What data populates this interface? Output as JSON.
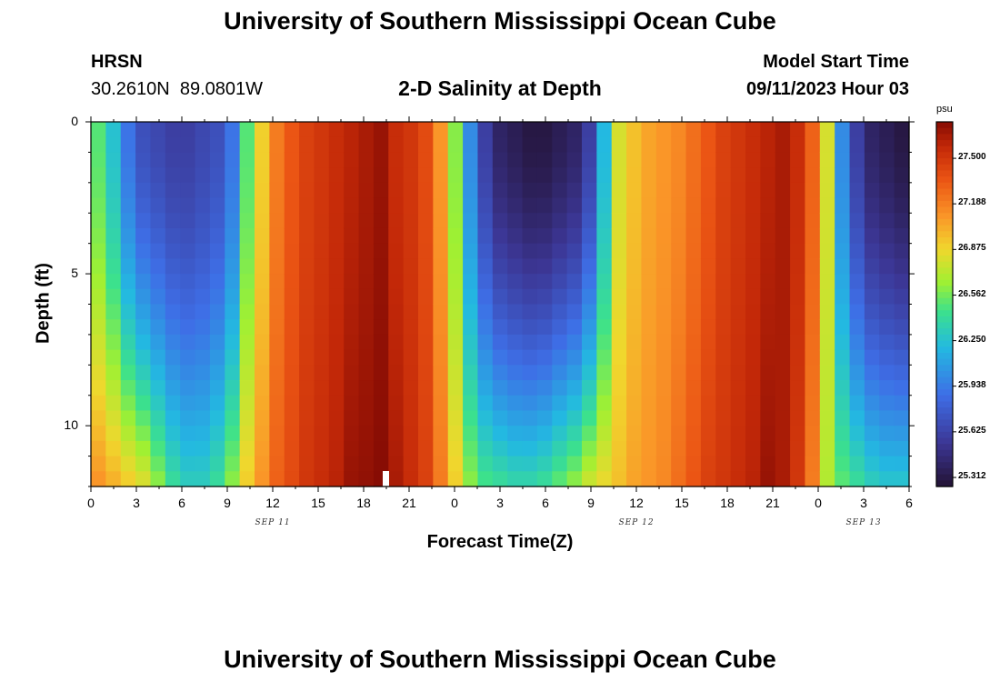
{
  "chart_data": {
    "type": "heatmap",
    "title": "University of Southern Mississippi Ocean Cube",
    "station": "HRSN",
    "location": "30.2610N  89.0801W",
    "subtitle": "2-D Salinity at Depth",
    "model_start_label": "Model Start Time",
    "model_start_value": "09/11/2023 Hour 03",
    "xlabel": "Forecast Time(Z)",
    "ylabel": "Depth (ft)",
    "x_ticks": [
      "0",
      "3",
      "6",
      "9",
      "12",
      "15",
      "18",
      "21",
      "0",
      "3",
      "6",
      "9",
      "12",
      "15",
      "18",
      "21",
      "0",
      "3",
      "6"
    ],
    "date_labels": [
      "SEP 11",
      "SEP 12",
      "SEP 13"
    ],
    "y_ticks": [
      "0",
      "5",
      "10"
    ],
    "y_range": [
      0,
      12
    ],
    "x_range_hours": [
      0,
      54
    ],
    "colorbar": {
      "unit": "psu",
      "ticks": [
        "27.500",
        "27.188",
        "26.875",
        "26.562",
        "26.250",
        "25.938",
        "25.625",
        "25.312"
      ],
      "range": [
        25.25,
        27.75
      ]
    },
    "surface_salinity_psu": [
      26.5,
      26.25,
      25.9,
      25.7,
      25.65,
      25.6,
      25.6,
      25.65,
      25.7,
      25.9,
      26.5,
      26.9,
      27.2,
      27.35,
      27.45,
      27.5,
      27.55,
      27.6,
      27.65,
      27.7,
      27.55,
      27.5,
      27.4,
      27.1,
      26.6,
      26.0,
      25.6,
      25.4,
      25.35,
      25.3,
      25.3,
      25.35,
      25.4,
      25.6,
      26.2,
      26.8,
      26.95,
      27.05,
      27.1,
      27.15,
      27.25,
      27.35,
      27.45,
      27.5,
      27.55,
      27.6,
      27.65,
      27.55,
      27.3,
      26.8,
      26.0,
      25.6,
      25.4,
      25.35,
      25.3
    ],
    "bottom_salinity_psu": [
      27.1,
      27.0,
      26.9,
      26.8,
      26.6,
      26.4,
      26.3,
      26.3,
      26.4,
      26.6,
      26.9,
      27.1,
      27.3,
      27.4,
      27.5,
      27.55,
      27.6,
      27.7,
      27.72,
      27.75,
      27.65,
      27.55,
      27.45,
      27.2,
      26.9,
      26.6,
      26.45,
      26.4,
      26.35,
      26.35,
      26.4,
      26.5,
      26.6,
      26.75,
      26.85,
      26.95,
      27.05,
      27.1,
      27.15,
      27.25,
      27.35,
      27.45,
      27.5,
      27.55,
      27.6,
      27.7,
      27.65,
      27.5,
      27.2,
      26.7,
      26.5,
      26.4,
      26.3,
      26.25,
      26.25
    ]
  }
}
